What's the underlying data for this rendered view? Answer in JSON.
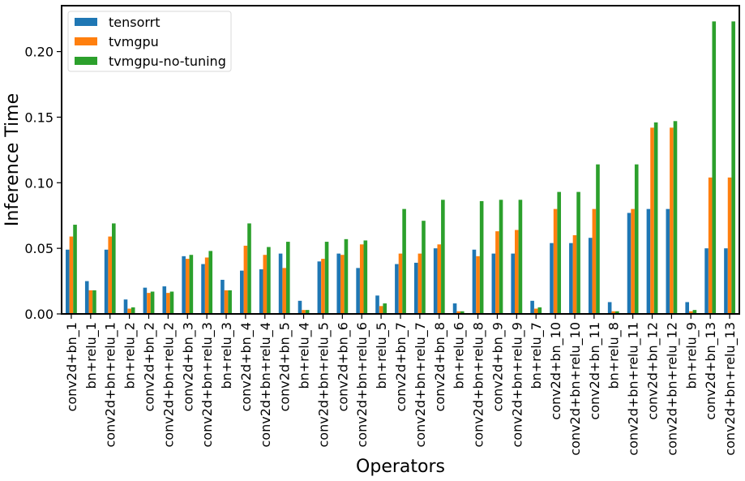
{
  "chart_data": {
    "type": "bar",
    "xlabel": "Operators",
    "ylabel": "Inference Time",
    "ylim": [
      0,
      0.235
    ],
    "yticks": [
      0.0,
      0.05,
      0.1,
      0.15,
      0.2
    ],
    "ytick_labels": [
      "0.00",
      "0.05",
      "0.10",
      "0.15",
      "0.20"
    ],
    "legend_position": "top-left",
    "grid": false,
    "categories": [
      "conv2d+bn_1",
      "bn+relu_1",
      "conv2d+bn+relu_1",
      "bn+relu_2",
      "conv2d+bn_2",
      "conv2d+bn+relu_2",
      "conv2d+bn_3",
      "conv2d+bn+relu_3",
      "bn+relu_3",
      "conv2d+bn_4",
      "conv2d+bn+relu_4",
      "conv2d+bn_5",
      "bn+relu_4",
      "conv2d+bn+relu_5",
      "conv2d+bn_6",
      "conv2d+bn+relu_6",
      "bn+relu_5",
      "conv2d+bn_7",
      "conv2d+bn+relu_7",
      "conv2d+bn_8",
      "bn+relu_6",
      "conv2d+bn+relu_8",
      "conv2d+bn_9",
      "conv2d+bn+relu_9",
      "bn+relu_7",
      "conv2d+bn_10",
      "conv2d+bn+relu_10",
      "conv2d+bn_11",
      "bn+relu_8",
      "conv2d+bn+relu_11",
      "conv2d+bn_12",
      "conv2d+bn+relu_12",
      "bn+relu_9",
      "conv2d+bn_13",
      "conv2d+bn+relu_13"
    ],
    "series": [
      {
        "name": "tensorrt",
        "color": "#1f77b4",
        "values": [
          0.049,
          0.025,
          0.049,
          0.011,
          0.02,
          0.021,
          0.044,
          0.038,
          0.026,
          0.033,
          0.034,
          0.046,
          0.01,
          0.04,
          0.046,
          0.035,
          0.014,
          0.038,
          0.039,
          0.05,
          0.008,
          0.049,
          0.046,
          0.046,
          0.01,
          0.054,
          0.054,
          0.058,
          0.009,
          0.077,
          0.08,
          0.08,
          0.009,
          0.05,
          0.05
        ]
      },
      {
        "name": "tvmgpu",
        "color": "#ff7f0e",
        "values": [
          0.059,
          0.018,
          0.059,
          0.004,
          0.016,
          0.016,
          0.042,
          0.043,
          0.018,
          0.052,
          0.045,
          0.035,
          0.003,
          0.042,
          0.045,
          0.053,
          0.006,
          0.046,
          0.046,
          0.053,
          0.002,
          0.044,
          0.063,
          0.064,
          0.004,
          0.08,
          0.06,
          0.08,
          0.002,
          0.08,
          0.142,
          0.142,
          0.002,
          0.104,
          0.104
        ]
      },
      {
        "name": "tvmgpu-no-tuning",
        "color": "#2ca02c",
        "values": [
          0.068,
          0.018,
          0.069,
          0.005,
          0.017,
          0.017,
          0.045,
          0.048,
          0.018,
          0.069,
          0.051,
          0.055,
          0.003,
          0.055,
          0.057,
          0.056,
          0.008,
          0.08,
          0.071,
          0.087,
          0.002,
          0.086,
          0.087,
          0.087,
          0.005,
          0.093,
          0.093,
          0.114,
          0.002,
          0.114,
          0.146,
          0.147,
          0.003,
          0.223,
          0.223
        ]
      }
    ]
  }
}
